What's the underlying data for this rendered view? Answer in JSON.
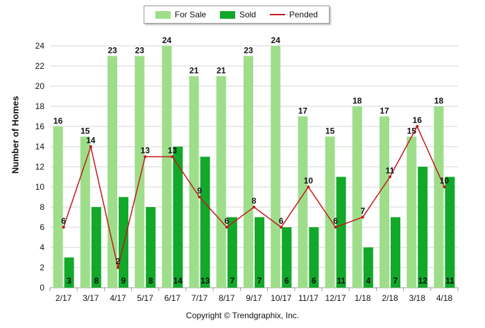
{
  "chart_data": {
    "type": "bar",
    "categories": [
      "2/17",
      "3/17",
      "4/17",
      "5/17",
      "6/17",
      "7/17",
      "8/17",
      "9/17",
      "10/17",
      "11/17",
      "12/17",
      "1/18",
      "2/18",
      "3/18",
      "4/18"
    ],
    "series": [
      {
        "name": "For Sale",
        "kind": "bar",
        "color": "#9ede8a",
        "values": [
          16,
          15,
          23,
          23,
          24,
          21,
          21,
          23,
          24,
          17,
          15,
          18,
          17,
          15,
          18
        ]
      },
      {
        "name": "Sold",
        "kind": "bar",
        "color": "#12a82a",
        "values": [
          3,
          8,
          9,
          8,
          14,
          13,
          7,
          7,
          6,
          6,
          11,
          4,
          7,
          12,
          11
        ]
      },
      {
        "name": "Pended",
        "kind": "line",
        "color": "#c4161c",
        "values": [
          6,
          14,
          2,
          13,
          13,
          9,
          6,
          8,
          6,
          10,
          6,
          7,
          11,
          16,
          10
        ]
      }
    ],
    "ylabel": "Number of Homes",
    "xlabel": "",
    "ylim": [
      0,
      24
    ],
    "yticks": [
      0,
      2,
      4,
      6,
      8,
      10,
      12,
      14,
      16,
      18,
      20,
      22,
      24
    ],
    "grid": true,
    "legend_position": "top"
  },
  "legend": {
    "for_sale": "For Sale",
    "sold": "Sold",
    "pended": "Pended"
  },
  "axis": {
    "ylabel": "Number of Homes"
  },
  "footer": {
    "copyright": "Copyright © Trendgraphix, Inc."
  }
}
